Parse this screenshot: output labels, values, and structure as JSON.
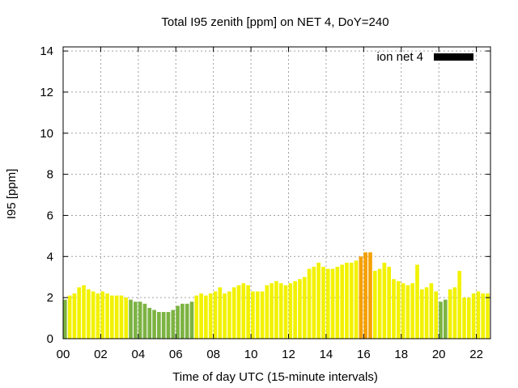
{
  "chart_data": {
    "type": "bar",
    "title": "Total I95 zenith [ppm] on NET 4, DoY=240",
    "xlabel": "Time of day UTC (15-minute intervals)",
    "ylabel": "I95 [ppm]",
    "xlim": [
      0,
      22.75
    ],
    "ylim": [
      0,
      14.2
    ],
    "grid": true,
    "legend_position": "top-right",
    "x_ticks": [
      {
        "value": 0,
        "label": "00"
      },
      {
        "value": 2,
        "label": "02"
      },
      {
        "value": 4,
        "label": "04"
      },
      {
        "value": 6,
        "label": "06"
      },
      {
        "value": 8,
        "label": "08"
      },
      {
        "value": 10,
        "label": "10"
      },
      {
        "value": 12,
        "label": "12"
      },
      {
        "value": 14,
        "label": "14"
      },
      {
        "value": 16,
        "label": "16"
      },
      {
        "value": 18,
        "label": "18"
      },
      {
        "value": 20,
        "label": "20"
      },
      {
        "value": 22,
        "label": "22"
      }
    ],
    "y_ticks": [
      {
        "value": 0,
        "label": "0"
      },
      {
        "value": 2,
        "label": "2"
      },
      {
        "value": 4,
        "label": "4"
      },
      {
        "value": 6,
        "label": "6"
      },
      {
        "value": 8,
        "label": "8"
      },
      {
        "value": 10,
        "label": "10"
      },
      {
        "value": 12,
        "label": "12"
      },
      {
        "value": 14,
        "label": "14"
      }
    ],
    "series": [
      {
        "name": "ion net 4",
        "legend_color": "#000000",
        "interval_hours": 0.25,
        "values": [
          1.9,
          2.1,
          2.2,
          2.5,
          2.6,
          2.4,
          2.3,
          2.2,
          2.3,
          2.2,
          2.1,
          2.1,
          2.1,
          2.0,
          1.9,
          1.8,
          1.8,
          1.7,
          1.5,
          1.4,
          1.3,
          1.3,
          1.3,
          1.4,
          1.6,
          1.7,
          1.7,
          1.8,
          2.1,
          2.2,
          2.1,
          2.2,
          2.3,
          2.5,
          2.2,
          2.3,
          2.5,
          2.6,
          2.7,
          2.6,
          2.3,
          2.3,
          2.3,
          2.6,
          2.7,
          2.8,
          2.7,
          2.6,
          2.7,
          2.8,
          2.9,
          3.0,
          3.4,
          3.5,
          3.7,
          3.5,
          3.4,
          3.4,
          3.5,
          3.6,
          3.7,
          3.7,
          3.8,
          4.0,
          4.2,
          4.2,
          3.3,
          3.4,
          3.7,
          3.5,
          2.9,
          2.8,
          2.7,
          2.6,
          2.7,
          3.6,
          2.4,
          2.5,
          2.7,
          2.3,
          1.8,
          1.9,
          2.4,
          2.5,
          3.3,
          2.0,
          2.0,
          2.2,
          2.3,
          2.2,
          2.2
        ],
        "colors": {
          "green": "#7cb342",
          "yellow": "#f2f200",
          "bright_yellow": "#ffff20",
          "orange": "#f5a000",
          "dark_orange": "#e88a00"
        },
        "color_rule": "green below 2.0, yellow 2.0-3.99, orange 4.0 and above"
      }
    ]
  }
}
